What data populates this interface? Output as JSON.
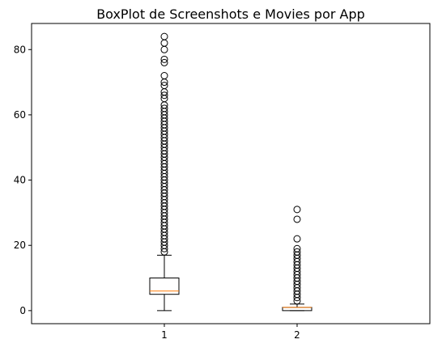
{
  "chart_data": {
    "type": "boxplot",
    "title": "BoxPlot de Screenshots e Movies por App",
    "xlabel": "",
    "ylabel": "",
    "categories": [
      "1",
      "2"
    ],
    "ylim": [
      -4,
      88
    ],
    "yticks": [
      0,
      20,
      40,
      60,
      80
    ],
    "grid": false,
    "legend": "none",
    "colors": {
      "box": "#000000",
      "median": "#ff7f0e",
      "whisker": "#000000",
      "flier": "#000000",
      "background": "#ffffff"
    },
    "boxes": [
      {
        "category": "1",
        "whisker_low": 0,
        "q1": 5,
        "median": 6,
        "q3": 10,
        "whisker_high": 17,
        "outliers": [
          18,
          19,
          20,
          21,
          22,
          23,
          24,
          25,
          26,
          27,
          28,
          29,
          30,
          31,
          32,
          33,
          34,
          35,
          36,
          37,
          38,
          39,
          40,
          41,
          42,
          43,
          44,
          45,
          46,
          47,
          48,
          49,
          50,
          51,
          52,
          53,
          54,
          55,
          56,
          57,
          58,
          59,
          60,
          61,
          62,
          63,
          65,
          66,
          67,
          69,
          70,
          72,
          76,
          77,
          80,
          82,
          84
        ]
      },
      {
        "category": "2",
        "whisker_low": 0,
        "q1": 0,
        "median": 1,
        "q3": 1,
        "whisker_high": 2,
        "outliers": [
          3,
          4,
          5,
          6,
          7,
          8,
          9,
          10,
          11,
          12,
          13,
          14,
          15,
          16,
          17,
          18,
          19,
          22,
          28,
          31
        ]
      }
    ]
  }
}
